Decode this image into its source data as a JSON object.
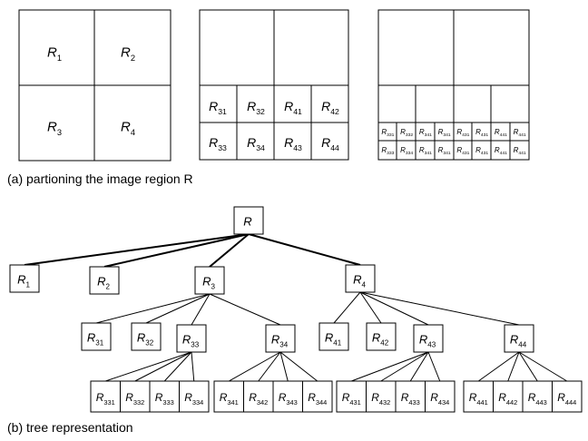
{
  "caption_a": "(a) partioning the image region R",
  "caption_b": "(b) tree representation",
  "panel1": {
    "cells": [
      "R1",
      "R2",
      "R3",
      "R4"
    ]
  },
  "panel2": {
    "cells": [
      "R31",
      "R32",
      "R41",
      "R42",
      "R33",
      "R34",
      "R43",
      "R44"
    ]
  },
  "panel3": {
    "row1": [
      "R331",
      "R332",
      "R341",
      "R341",
      "R431",
      "R431",
      "R441",
      "R441"
    ],
    "row2": [
      "R333",
      "R334",
      "R341",
      "R341",
      "R431",
      "R431",
      "R441",
      "R441"
    ]
  },
  "tree": {
    "root": "R",
    "level1": [
      "R1",
      "R2",
      "R3",
      "R4"
    ],
    "level2": [
      "R31",
      "R32",
      "R33",
      "R34",
      "R41",
      "R42",
      "R43",
      "R44"
    ],
    "level3": [
      "R331",
      "R332",
      "R333",
      "R334",
      "R341",
      "R342",
      "R343",
      "R344",
      "R431",
      "R432",
      "R433",
      "R434",
      "R441",
      "R442",
      "R443",
      "R444"
    ]
  },
  "colors": {
    "line": "#000000",
    "background": "#ffffff"
  }
}
